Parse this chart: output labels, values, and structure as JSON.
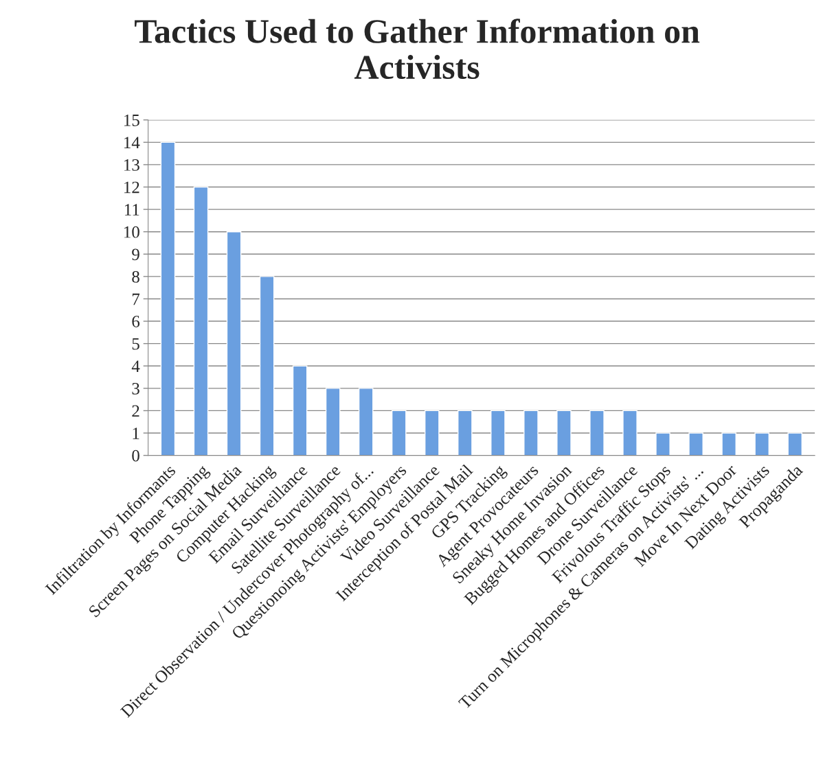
{
  "chart_data": {
    "type": "bar",
    "title": "Tactics Used to Gather Information on Activists",
    "categories": [
      "Infiltration by Informants",
      "Phone Tapping",
      "Screen Pages on Social Media",
      "Computer Hacking",
      "Email Surveillance",
      "Satellite Surveillance",
      "Direct Observation / Undercover Photography of...",
      "Questionoing Activists' Employers",
      "Video Surveillance",
      "Interception of Postal Mail",
      "GPS Tracking",
      "Agent Provocateurs",
      "Sneaky Home Invasion",
      "Bugged Homes and Offices",
      "Drone Surveillance",
      "Frivolous Traffic Stops",
      "Turn on Microphones & Cameras on Activists' ...",
      "Move In Next Door",
      "Dating Activists",
      "Propaganda"
    ],
    "values": [
      14,
      12,
      10,
      8,
      4,
      3,
      3,
      2,
      2,
      2,
      2,
      2,
      2,
      2,
      2,
      1,
      1,
      1,
      1,
      1
    ],
    "color": "#6a9fe0",
    "ylim": [
      0,
      15
    ],
    "yticks": [
      0,
      1,
      2,
      3,
      4,
      5,
      6,
      7,
      8,
      9,
      10,
      11,
      12,
      13,
      14,
      15
    ],
    "grid": "y",
    "legend": false
  }
}
